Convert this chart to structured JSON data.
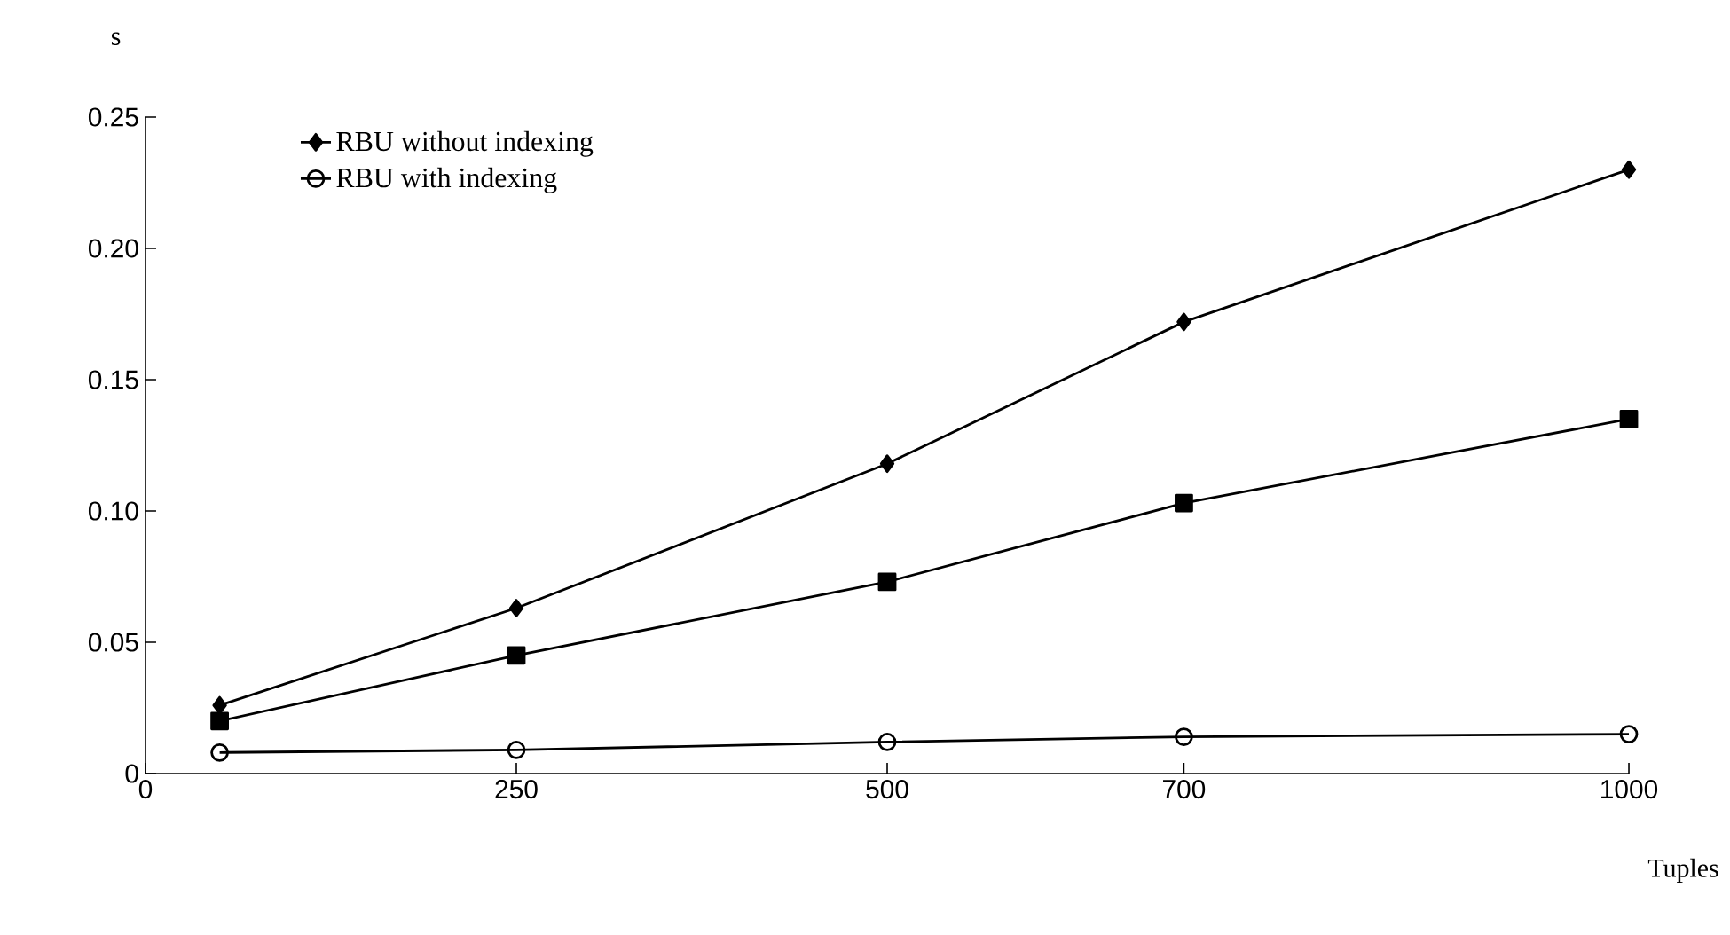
{
  "chart_data": {
    "type": "line",
    "xlabel": "Tuples",
    "ylabel": "s",
    "xlim": [
      0,
      1000
    ],
    "ylim": [
      0,
      0.25
    ],
    "xticks": [
      0,
      250,
      500,
      700,
      1000
    ],
    "yticks": [
      0,
      0.05,
      {
        "value": 0.1,
        "label": "0.10"
      },
      0.15,
      {
        "value": 0.2,
        "label": "0.20"
      },
      0.25
    ],
    "grid": false,
    "legend": "top left",
    "line_style": "solid",
    "series": [
      {
        "name": "RBU without indexing",
        "color": "#000000",
        "marker": "diamond",
        "x": [
          50,
          250,
          500,
          700,
          1000
        ],
        "values": [
          0.026,
          0.063,
          0.118,
          0.172,
          0.23
        ]
      },
      {
        "color": "#000000",
        "marker": "square",
        "x": [
          50,
          250,
          500,
          700,
          1000
        ],
        "values": [
          0.02,
          0.045,
          0.073,
          0.103,
          0.135
        ]
      },
      {
        "name": "RBU with indexing",
        "color": "#000000",
        "marker": "circle",
        "x": [
          50,
          250,
          500,
          700,
          1000
        ],
        "values": [
          0.008,
          0.009,
          0.012,
          0.014,
          0.015
        ]
      }
    ]
  }
}
